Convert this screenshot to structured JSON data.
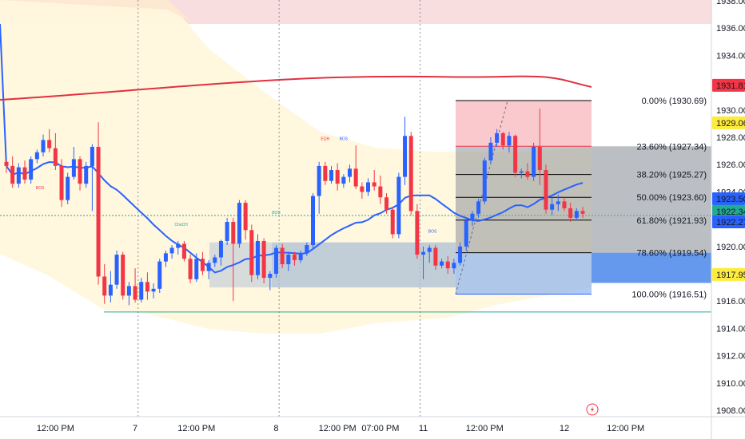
{
  "chart_data": {
    "type": "candlestick",
    "y_axis": {
      "min": 1908.0,
      "max": 1938.0,
      "ticks": [
        "1938.00",
        "1936.00",
        "1934.00",
        "1932.00",
        "1930.00",
        "1928.00",
        "1926.00",
        "1924.00",
        "1922.00",
        "1920.00",
        "1918.00",
        "1916.00",
        "1914.00",
        "1912.00",
        "1910.00",
        "1908.00"
      ]
    },
    "x_axis": {
      "labels": [
        {
          "label": "12:00 PM",
          "bar": 8
        },
        {
          "label": "7",
          "bar": 21
        },
        {
          "label": "12:00 PM",
          "bar": 31
        },
        {
          "label": "8",
          "bar": 44
        },
        {
          "label": "12:00 PM",
          "bar": 54
        },
        {
          "label": "07:00 PM",
          "bar": 61
        },
        {
          "label": "11",
          "bar": 68
        },
        {
          "label": "12:00 PM",
          "bar": 78
        },
        {
          "label": "12",
          "bar": 91
        },
        {
          "label": "12:00 PM",
          "bar": 101
        }
      ],
      "separators": [
        22,
        45,
        68
      ]
    },
    "price_labels": [
      {
        "value": 1931.81,
        "text": "1931.81",
        "bg": "#f23645",
        "fg": "#ffffff"
      },
      {
        "value": 1929.06,
        "text": "1929.06",
        "bg": "#ffeb3b",
        "fg": "#131722"
      },
      {
        "value": 1923.5,
        "text": "1923.50",
        "bg": "#2962ff",
        "fg": "#ffffff"
      },
      {
        "value": 1922.34,
        "text": "1922.34",
        "bg": "#22ab94",
        "fg": "#ffffff"
      },
      {
        "value": 1922.27,
        "text": "1922.27",
        "bg": "#2962ff",
        "fg": "#ffffff"
      },
      {
        "value": 1917.95,
        "text": "1917.95",
        "bg": "#ffeb3b",
        "fg": "#131722"
      }
    ],
    "fibonacci": {
      "start_bar": 70,
      "end_bar": 102,
      "levels": [
        {
          "label": "0.00% (1930.69)",
          "value": 1930.69
        },
        {
          "label": "23.60% (1927.34)",
          "value": 1927.34
        },
        {
          "label": "38.20% (1925.27)",
          "value": 1925.27
        },
        {
          "label": "50.00% (1923.60)",
          "value": 1923.6
        },
        {
          "label": "61.80% (1921.93)",
          "value": 1921.93
        },
        {
          "label": "78.60% (1919.54)",
          "value": 1919.54
        },
        {
          "label": "100.00% (1916.51)",
          "value": 1916.51
        }
      ]
    },
    "annotations": [
      {
        "text": "BOS",
        "bar": 5.5,
        "value": 1924.2,
        "color": "#f23645"
      },
      {
        "text": "ChoCH",
        "bar": 28.5,
        "value": 1921.5,
        "color": "#22ab94"
      },
      {
        "text": "BOS",
        "bar": 44,
        "value": 1922.4,
        "color": "#22ab94"
      },
      {
        "text": "EQH",
        "bar": 52,
        "value": 1927.8,
        "color": "#f23645"
      },
      {
        "text": "BOS",
        "bar": 55,
        "value": 1927.8,
        "color": "#2962ff"
      },
      {
        "text": "BOS",
        "bar": 69.5,
        "value": 1921.0,
        "color": "#2962ff"
      }
    ],
    "candles": [
      [
        1926.2,
        1926.4,
        1925.4,
        1925.9
      ],
      [
        1925.9,
        1926.6,
        1924.3,
        1924.6
      ],
      [
        1924.6,
        1926.1,
        1924.3,
        1925.8
      ],
      [
        1925.8,
        1926.3,
        1924.6,
        1924.9
      ],
      [
        1924.9,
        1926.6,
        1924.6,
        1926.4
      ],
      [
        1926.4,
        1927.1,
        1926.1,
        1926.9
      ],
      [
        1926.9,
        1928.2,
        1926.6,
        1927.8
      ],
      [
        1927.8,
        1928.6,
        1926.9,
        1927.2
      ],
      [
        1927.2,
        1928.3,
        1925.6,
        1925.9
      ],
      [
        1925.9,
        1926.4,
        1922.9,
        1923.4
      ],
      [
        1923.4,
        1925.4,
        1923.1,
        1925.1
      ],
      [
        1925.1,
        1927.3,
        1924.9,
        1926.4
      ],
      [
        1926.4,
        1926.6,
        1924.1,
        1924.6
      ],
      [
        1924.6,
        1926.2,
        1924.3,
        1925.9
      ],
      [
        1925.9,
        1927.5,
        1922.6,
        1927.3
      ],
      [
        1927.3,
        1929.1,
        1917.2,
        1917.8
      ],
      [
        1917.8,
        1918.7,
        1915.8,
        1916.4
      ],
      [
        1916.4,
        1918.2,
        1915.9,
        1917.2
      ],
      [
        1917.2,
        1919.7,
        1916.9,
        1919.4
      ],
      [
        1919.4,
        1919.6,
        1916.1,
        1916.4
      ],
      [
        1916.4,
        1917.4,
        1915.7,
        1917.1
      ],
      [
        1917.1,
        1918.4,
        1915.9,
        1916.1
      ],
      [
        1916.1,
        1917.7,
        1915.9,
        1917.4
      ],
      [
        1917.4,
        1918.1,
        1916.1,
        1916.7
      ],
      [
        1916.7,
        1917.3,
        1916.2,
        1916.9
      ],
      [
        1916.9,
        1919.1,
        1916.6,
        1918.9
      ],
      [
        1918.9,
        1919.7,
        1918.5,
        1919.5
      ],
      [
        1919.5,
        1920.1,
        1919.1,
        1919.9
      ],
      [
        1919.9,
        1920.4,
        1919.4,
        1920.2
      ],
      [
        1920.2,
        1920.4,
        1918.9,
        1919.1
      ],
      [
        1919.1,
        1919.4,
        1917.3,
        1917.6
      ],
      [
        1917.6,
        1919.5,
        1917.4,
        1919.1
      ],
      [
        1919.1,
        1919.6,
        1917.9,
        1918.2
      ],
      [
        1918.2,
        1919.0,
        1917.6,
        1918.8
      ],
      [
        1918.8,
        1919.4,
        1918.5,
        1919.2
      ],
      [
        1919.2,
        1920.5,
        1918.6,
        1920.4
      ],
      [
        1920.4,
        1922.1,
        1920.1,
        1921.8
      ],
      [
        1921.8,
        1922.1,
        1916.0,
        1920.2
      ],
      [
        1920.2,
        1923.4,
        1919.9,
        1923.2
      ],
      [
        1923.2,
        1923.4,
        1920.5,
        1921.2
      ],
      [
        1921.2,
        1921.6,
        1917.4,
        1917.9
      ],
      [
        1917.9,
        1920.9,
        1917.6,
        1920.4
      ],
      [
        1920.4,
        1920.6,
        1917.3,
        1917.7
      ],
      [
        1917.7,
        1918.2,
        1916.8,
        1918.0
      ],
      [
        1918.0,
        1920.1,
        1917.7,
        1919.9
      ],
      [
        1919.9,
        1920.2,
        1918.4,
        1918.7
      ],
      [
        1918.7,
        1919.6,
        1918.2,
        1919.4
      ],
      [
        1919.4,
        1919.6,
        1918.6,
        1919.0
      ],
      [
        1919.0,
        1919.7,
        1918.8,
        1919.5
      ],
      [
        1919.5,
        1920.3,
        1919.3,
        1920.1
      ],
      [
        1920.1,
        1923.9,
        1919.8,
        1923.7
      ],
      [
        1923.7,
        1926.2,
        1922.4,
        1925.9
      ],
      [
        1925.9,
        1926.2,
        1924.5,
        1924.8
      ],
      [
        1924.8,
        1925.9,
        1924.6,
        1925.6
      ],
      [
        1925.6,
        1926.1,
        1924.1,
        1924.6
      ],
      [
        1924.6,
        1925.3,
        1924.3,
        1925.1
      ],
      [
        1925.1,
        1926.0,
        1924.7,
        1925.7
      ],
      [
        1925.7,
        1927.4,
        1924.2,
        1924.4
      ],
      [
        1924.4,
        1924.7,
        1923.5,
        1924.0
      ],
      [
        1924.0,
        1925.0,
        1923.7,
        1924.7
      ],
      [
        1924.7,
        1925.6,
        1924.1,
        1924.4
      ],
      [
        1924.4,
        1925.2,
        1923.1,
        1923.6
      ],
      [
        1923.6,
        1923.9,
        1922.4,
        1922.7
      ],
      [
        1922.7,
        1922.9,
        1920.6,
        1920.9
      ],
      [
        1920.9,
        1925.4,
        1920.6,
        1925.1
      ],
      [
        1925.1,
        1929.5,
        1924.5,
        1928.1
      ],
      [
        1928.1,
        1928.4,
        1922.3,
        1922.6
      ],
      [
        1922.6,
        1923.1,
        1919.1,
        1919.4
      ],
      [
        1919.4,
        1920.0,
        1917.6,
        1919.6
      ],
      [
        1919.6,
        1920.1,
        1918.8,
        1919.9
      ],
      [
        1919.9,
        1920.1,
        1918.3,
        1918.6
      ],
      [
        1918.6,
        1919.1,
        1918.4,
        1918.9
      ],
      [
        1918.9,
        1919.3,
        1918.0,
        1918.4
      ],
      [
        1918.4,
        1919.1,
        1918.0,
        1918.8
      ],
      [
        1918.8,
        1920.3,
        1918.6,
        1920.0
      ],
      [
        1920.0,
        1922.1,
        1919.7,
        1921.9
      ],
      [
        1921.9,
        1922.6,
        1921.5,
        1922.4
      ],
      [
        1922.4,
        1923.5,
        1922.1,
        1923.3
      ],
      [
        1923.3,
        1926.5,
        1923.1,
        1926.3
      ],
      [
        1926.3,
        1928.0,
        1926.1,
        1927.6
      ],
      [
        1927.6,
        1928.6,
        1927.3,
        1928.3
      ],
      [
        1928.3,
        1928.4,
        1927.1,
        1927.4
      ],
      [
        1927.4,
        1928.4,
        1926.9,
        1928.1
      ],
      [
        1928.1,
        1928.2,
        1925.1,
        1925.4
      ],
      [
        1925.4,
        1925.7,
        1925.0,
        1925.5
      ],
      [
        1925.5,
        1926.1,
        1924.9,
        1925.1
      ],
      [
        1925.1,
        1927.6,
        1924.8,
        1927.3
      ],
      [
        1927.3,
        1930.1,
        1924.5,
        1925.6
      ],
      [
        1925.6,
        1926.0,
        1922.4,
        1922.7
      ],
      [
        1922.7,
        1923.6,
        1922.3,
        1923.1
      ],
      [
        1923.1,
        1923.8,
        1922.6,
        1923.3
      ],
      [
        1923.3,
        1923.6,
        1922.6,
        1922.8
      ],
      [
        1922.8,
        1923.2,
        1921.8,
        1922.1
      ],
      [
        1922.1,
        1922.8,
        1921.9,
        1922.6
      ],
      [
        1922.6,
        1922.9,
        1922.1,
        1922.4
      ]
    ]
  }
}
